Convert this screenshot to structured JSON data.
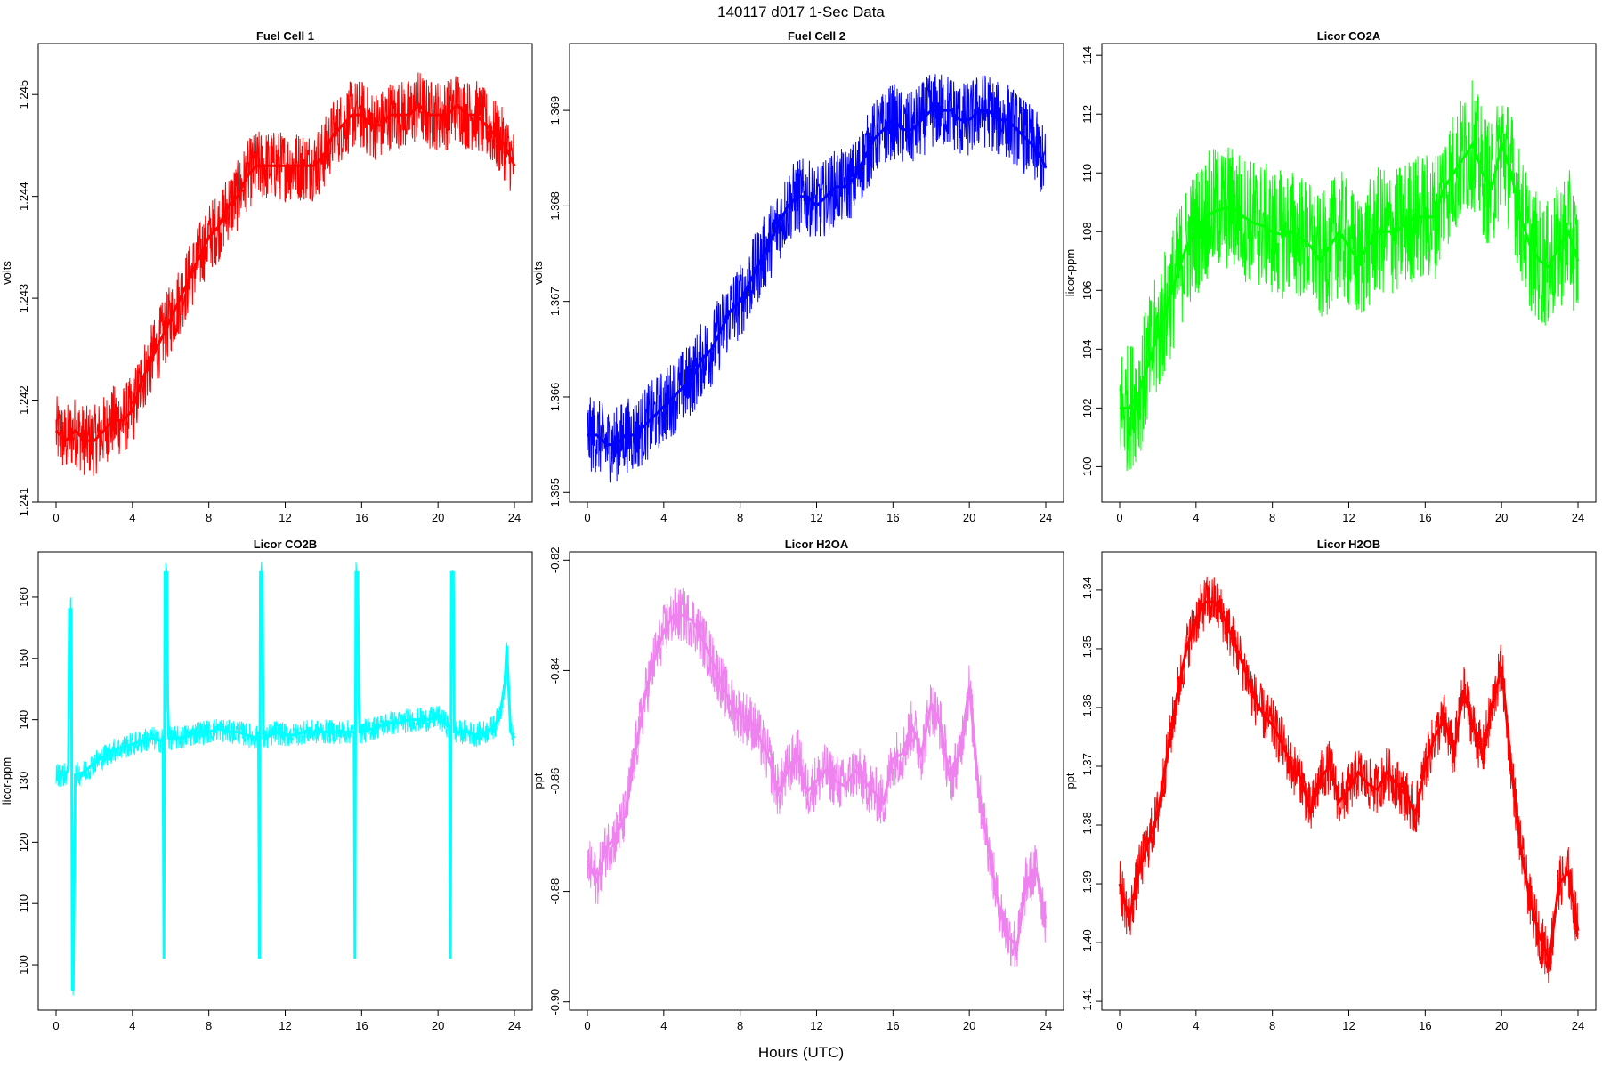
{
  "figure": {
    "title": "140117   d017   1-Sec Data",
    "xlabel": "Hours (UTC)"
  },
  "chart_data": [
    {
      "type": "line",
      "title": "Fuel Cell 1",
      "ylabel": "volts",
      "color": "#ff0000",
      "xlim": [
        0,
        24
      ],
      "ylim": [
        1.241,
        1.2455
      ],
      "xticks": [
        0,
        4,
        8,
        12,
        16,
        20,
        24
      ],
      "yticks": [
        "1.241",
        "1.242",
        "1.243",
        "1.244",
        "1.245"
      ],
      "x": [
        0,
        0.5,
        1,
        1.5,
        2,
        2.5,
        3,
        3.5,
        4,
        4.5,
        5,
        5.5,
        6,
        6.5,
        7,
        7.5,
        8,
        8.5,
        9,
        9.5,
        10,
        10.5,
        11,
        11.5,
        12,
        12.5,
        13,
        13.5,
        14,
        14.5,
        15,
        15.5,
        16,
        16.5,
        17,
        17.5,
        18,
        18.5,
        19,
        19.5,
        20,
        20.5,
        21,
        21.5,
        22,
        22.5,
        23,
        23.5,
        24
      ],
      "y": [
        1.2417,
        1.2416,
        1.2417,
        1.2416,
        1.2416,
        1.2417,
        1.2418,
        1.2418,
        1.2419,
        1.2422,
        1.2424,
        1.2426,
        1.2428,
        1.243,
        1.2432,
        1.2434,
        1.2436,
        1.2437,
        1.2439,
        1.244,
        1.2442,
        1.2443,
        1.2443,
        1.2443,
        1.2443,
        1.2443,
        1.2443,
        1.2443,
        1.2444,
        1.2446,
        1.2447,
        1.2448,
        1.2448,
        1.2447,
        1.2447,
        1.2448,
        1.2448,
        1.2448,
        1.2449,
        1.2448,
        1.2448,
        1.2448,
        1.2449,
        1.2448,
        1.2448,
        1.2447,
        1.2446,
        1.2445,
        1.2443
      ],
      "band": 0.00035
    },
    {
      "type": "line",
      "title": "Fuel Cell 2",
      "ylabel": "volts",
      "color": "#0000ff",
      "xlim": [
        0,
        24
      ],
      "ylim": [
        1.3649,
        1.3697
      ],
      "xticks": [
        0,
        4,
        8,
        12,
        16,
        20,
        24
      ],
      "yticks": [
        "1.365",
        "1.366",
        "1.367",
        "1.368",
        "1.369"
      ],
      "x": [
        0,
        0.5,
        1,
        1.5,
        2,
        2.5,
        3,
        3.5,
        4,
        4.5,
        5,
        5.5,
        6,
        6.5,
        7,
        7.5,
        8,
        8.5,
        9,
        9.5,
        10,
        10.5,
        11,
        11.5,
        12,
        12.5,
        13,
        13.5,
        14,
        14.5,
        15,
        15.5,
        16,
        16.5,
        17,
        17.5,
        18,
        18.5,
        19,
        19.5,
        20,
        20.5,
        21,
        21.5,
        22,
        22.5,
        23,
        23.5,
        24
      ],
      "y": [
        1.3656,
        1.3656,
        1.3655,
        1.3655,
        1.3656,
        1.3656,
        1.3657,
        1.3658,
        1.3659,
        1.366,
        1.3661,
        1.3662,
        1.3664,
        1.3665,
        1.3667,
        1.3669,
        1.367,
        1.3672,
        1.3674,
        1.3676,
        1.3678,
        1.368,
        1.3681,
        1.3681,
        1.368,
        1.3681,
        1.3682,
        1.3682,
        1.3683,
        1.3685,
        1.3687,
        1.3688,
        1.3689,
        1.3688,
        1.3688,
        1.3689,
        1.369,
        1.369,
        1.369,
        1.3689,
        1.3689,
        1.369,
        1.369,
        1.3689,
        1.3689,
        1.3688,
        1.3687,
        1.3686,
        1.3684
      ],
      "band": 0.0004
    },
    {
      "type": "line",
      "title": "Licor CO2A",
      "ylabel": "licor-ppm",
      "color": "#00ff00",
      "xlim": [
        0,
        24
      ],
      "ylim": [
        98.8,
        114.4
      ],
      "xticks": [
        0,
        4,
        8,
        12,
        16,
        20,
        24
      ],
      "yticks": [
        "100",
        "102",
        "104",
        "106",
        "108",
        "110",
        "112",
        "114"
      ],
      "x": [
        0,
        0.5,
        1,
        1.5,
        2,
        2.5,
        3,
        3.5,
        4,
        4.5,
        5,
        5.5,
        6,
        6.5,
        7,
        7.5,
        8,
        8.5,
        9,
        9.5,
        10,
        10.5,
        11,
        11.5,
        12,
        12.5,
        13,
        13.5,
        14,
        14.5,
        15,
        15.5,
        16,
        16.5,
        17,
        17.5,
        18,
        18.5,
        19,
        19.5,
        20,
        20.5,
        21,
        21.5,
        22,
        22.5,
        23,
        23.5,
        24
      ],
      "y": [
        102,
        102,
        102.5,
        103.5,
        104.5,
        105.5,
        106.5,
        107.5,
        108.0,
        108.5,
        108.7,
        108.8,
        108.8,
        108.5,
        108.3,
        108.2,
        108.0,
        107.9,
        108.0,
        107.8,
        107.5,
        107.0,
        107.5,
        108.0,
        107.5,
        107.0,
        107.5,
        108.0,
        108.0,
        108.0,
        108.3,
        108.5,
        108.5,
        108.5,
        109.5,
        110.0,
        110.5,
        111.0,
        110.0,
        109.5,
        111.0,
        110.0,
        108.5,
        107.5,
        107.0,
        106.8,
        107.5,
        108.0,
        107.0
      ],
      "band": 2.2
    },
    {
      "type": "line",
      "title": "Licor CO2B",
      "ylabel": "licor-ppm",
      "color": "#00ffff",
      "xlim": [
        0,
        24
      ],
      "ylim": [
        92.6,
        167.4
      ],
      "xticks": [
        0,
        4,
        8,
        12,
        16,
        20,
        24
      ],
      "yticks": [
        "100",
        "110",
        "120",
        "130",
        "140",
        "150",
        "160"
      ],
      "x": [
        0,
        0.5,
        0.65,
        0.7,
        0.75,
        0.8,
        0.85,
        0.9,
        1.0,
        1.5,
        2,
        2.5,
        3,
        3.5,
        4,
        4.5,
        5,
        5.5,
        5.6,
        5.65,
        5.7,
        5.75,
        5.8,
        5.85,
        5.9,
        6.0,
        6.5,
        7,
        7.5,
        8,
        8.5,
        9,
        9.5,
        10,
        10.5,
        10.6,
        10.65,
        10.7,
        10.75,
        10.8,
        10.85,
        10.9,
        11.0,
        11.5,
        12,
        12.5,
        13,
        13.5,
        14,
        14.5,
        15,
        15.5,
        15.6,
        15.65,
        15.7,
        15.75,
        15.8,
        15.85,
        15.9,
        16.0,
        16.5,
        17,
        17.5,
        18,
        18.5,
        19,
        19.5,
        20,
        20.5,
        20.6,
        20.65,
        20.7,
        20.75,
        20.8,
        20.85,
        20.9,
        21.0,
        21.5,
        22,
        22.5,
        23,
        23.3,
        23.5,
        23.6,
        23.8,
        24
      ],
      "y": [
        131,
        131,
        132,
        158,
        158,
        158,
        96,
        96,
        131,
        131.5,
        133,
        134,
        135,
        135.5,
        136,
        136.5,
        137,
        136.5,
        137,
        101,
        164,
        164,
        164,
        143,
        137,
        137,
        137,
        137.5,
        138,
        138,
        138.5,
        138,
        138,
        137.5,
        137,
        137.5,
        101,
        164,
        164,
        164,
        137,
        137,
        137,
        138,
        137.5,
        137.5,
        138,
        138,
        138,
        138,
        138,
        138,
        138,
        101,
        164,
        164,
        164,
        144,
        138,
        138,
        138.5,
        139,
        139.5,
        139.5,
        140,
        140,
        140,
        140.5,
        139,
        139,
        101,
        164,
        164,
        164,
        138,
        138,
        138,
        138,
        137.5,
        138,
        139,
        142,
        146,
        152,
        138,
        137
      ],
      "band": 2.0
    },
    {
      "type": "line",
      "title": "Licor H2OA",
      "ylabel": "ppt",
      "color": "#ee82ee",
      "xlim": [
        0,
        24
      ],
      "ylim": [
        -0.9015,
        -0.8185
      ],
      "xticks": [
        0,
        4,
        8,
        12,
        16,
        20,
        24
      ],
      "yticks": [
        "-0.82",
        "-0.84",
        "-0.86",
        "-0.88",
        "-0.90"
      ],
      "x": [
        0,
        0.5,
        1,
        1.5,
        2,
        2.5,
        3,
        3.5,
        4,
        4.5,
        5,
        5.5,
        6,
        6.5,
        7,
        7.5,
        8,
        8.5,
        9,
        9.5,
        10,
        10.5,
        11,
        11.5,
        12,
        12.5,
        13,
        13.5,
        14,
        14.5,
        15,
        15.5,
        16,
        16.5,
        17,
        17.5,
        18,
        18.5,
        19,
        19.5,
        20,
        20.5,
        21,
        21.5,
        22,
        22.5,
        23,
        23.5,
        24
      ],
      "y": [
        -0.875,
        -0.878,
        -0.872,
        -0.87,
        -0.866,
        -0.855,
        -0.845,
        -0.838,
        -0.833,
        -0.83,
        -0.83,
        -0.831,
        -0.834,
        -0.838,
        -0.842,
        -0.846,
        -0.848,
        -0.849,
        -0.852,
        -0.856,
        -0.862,
        -0.858,
        -0.855,
        -0.862,
        -0.86,
        -0.858,
        -0.86,
        -0.861,
        -0.858,
        -0.86,
        -0.862,
        -0.864,
        -0.856,
        -0.855,
        -0.85,
        -0.855,
        -0.846,
        -0.85,
        -0.86,
        -0.855,
        -0.843,
        -0.862,
        -0.872,
        -0.882,
        -0.888,
        -0.89,
        -0.878,
        -0.876,
        -0.885
      ],
      "band": 0.005
    },
    {
      "type": "line",
      "title": "Licor H2OB",
      "ylabel": "ppt",
      "color": "#ff0000",
      "xlim": [
        0,
        24
      ],
      "ylim": [
        -1.4115,
        -1.3335
      ],
      "xticks": [
        0,
        4,
        8,
        12,
        16,
        20,
        24
      ],
      "yticks": [
        "-1.34",
        "-1.35",
        "-1.36",
        "-1.37",
        "-1.38",
        "-1.39",
        "-1.40",
        "-1.41"
      ],
      "x": [
        0,
        0.5,
        1,
        1.5,
        2,
        2.5,
        3,
        3.5,
        4,
        4.5,
        5,
        5.5,
        6,
        6.5,
        7,
        7.5,
        8,
        8.5,
        9,
        9.5,
        10,
        10.5,
        11,
        11.5,
        12,
        12.5,
        13,
        13.5,
        14,
        14.5,
        15,
        15.5,
        16,
        16.5,
        17,
        17.5,
        18,
        18.5,
        19,
        19.5,
        20,
        20.5,
        21,
        21.5,
        22,
        22.5,
        23,
        23.5,
        24
      ],
      "y": [
        -1.39,
        -1.396,
        -1.388,
        -1.383,
        -1.378,
        -1.368,
        -1.358,
        -1.35,
        -1.345,
        -1.342,
        -1.342,
        -1.345,
        -1.349,
        -1.353,
        -1.358,
        -1.361,
        -1.363,
        -1.366,
        -1.37,
        -1.372,
        -1.378,
        -1.372,
        -1.37,
        -1.376,
        -1.374,
        -1.371,
        -1.373,
        -1.374,
        -1.371,
        -1.373,
        -1.375,
        -1.378,
        -1.37,
        -1.365,
        -1.362,
        -1.368,
        -1.357,
        -1.363,
        -1.368,
        -1.36,
        -1.353,
        -1.37,
        -1.384,
        -1.393,
        -1.399,
        -1.403,
        -1.39,
        -1.388,
        -1.398
      ],
      "band": 0.0045
    }
  ]
}
